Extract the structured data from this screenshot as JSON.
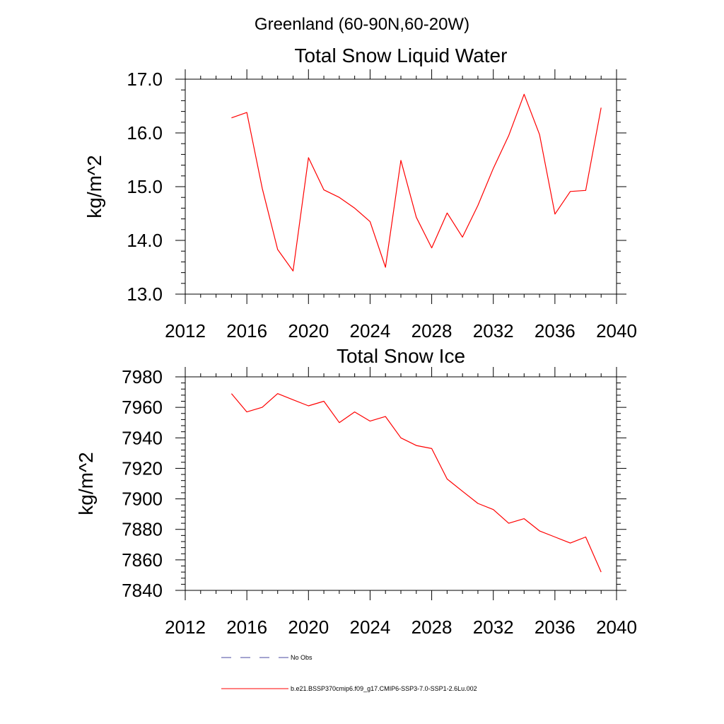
{
  "figure_title": "Greenland (60-90N,60-20W)",
  "colors": {
    "model": "#ff0000",
    "obs": "#4a4aa0",
    "axes": "#000000"
  },
  "legend": {
    "items": [
      {
        "label": "No Obs",
        "style": "dashed",
        "color": "#4a4aa0"
      },
      {
        "label": "b.e21.BSSP370cmip6.f09_g17.CMIP6-SSP3-7.0-SSP1-2.6Lu.002",
        "style": "solid",
        "color": "#ff0000"
      }
    ]
  },
  "chart_data": [
    {
      "type": "line",
      "title": "Total Snow Liquid Water",
      "xlabel": "",
      "ylabel": "kg/m^2",
      "xlim": [
        2012,
        2040
      ],
      "ylim": [
        13.0,
        17.0
      ],
      "xticks": [
        2012,
        2016,
        2020,
        2024,
        2028,
        2032,
        2036,
        2040
      ],
      "xtick_labels": [
        "2012",
        "2016",
        "2020",
        "2024",
        "2028",
        "2032",
        "2036",
        "2040"
      ],
      "xminor": 1,
      "yticks": [
        13.0,
        14.0,
        15.0,
        16.0,
        17.0
      ],
      "ytick_labels": [
        "13.0",
        "14.0",
        "15.0",
        "16.0",
        "17.0"
      ],
      "yminor": 0.2,
      "x": [
        2015,
        2016,
        2017,
        2018,
        2019,
        2020,
        2021,
        2022,
        2023,
        2024,
        2025,
        2026,
        2027,
        2028,
        2029,
        2030,
        2031,
        2032,
        2033,
        2034,
        2035,
        2036,
        2037,
        2038,
        2039
      ],
      "series": [
        {
          "name": "b.e21.BSSP370cmip6.f09_g17.CMIP6-SSP3-7.0-SSP1-2.6Lu.002",
          "color": "#ff0000",
          "values": [
            16.28,
            16.38,
            14.97,
            13.83,
            13.43,
            15.54,
            14.94,
            14.8,
            14.6,
            14.35,
            13.5,
            15.49,
            14.43,
            13.86,
            14.51,
            14.06,
            14.65,
            15.34,
            15.95,
            16.72,
            15.97,
            14.49,
            14.91,
            14.93,
            16.47
          ]
        }
      ]
    },
    {
      "type": "line",
      "title": "Total Snow Ice",
      "xlabel": "",
      "ylabel": "kg/m^2",
      "xlim": [
        2012,
        2040
      ],
      "ylim": [
        7840,
        7980
      ],
      "xticks": [
        2012,
        2016,
        2020,
        2024,
        2028,
        2032,
        2036,
        2040
      ],
      "xtick_labels": [
        "2012",
        "2016",
        "2020",
        "2024",
        "2028",
        "2032",
        "2036",
        "2040"
      ],
      "xminor": 1,
      "yticks": [
        7840,
        7860,
        7880,
        7900,
        7920,
        7940,
        7960,
        7980
      ],
      "ytick_labels": [
        "7840",
        "7860",
        "7880",
        "7900",
        "7920",
        "7940",
        "7960",
        "7980"
      ],
      "yminor": 4,
      "x": [
        2015,
        2016,
        2017,
        2018,
        2019,
        2020,
        2021,
        2022,
        2023,
        2024,
        2025,
        2026,
        2027,
        2028,
        2029,
        2030,
        2031,
        2032,
        2033,
        2034,
        2035,
        2036,
        2037,
        2038,
        2039
      ],
      "series": [
        {
          "name": "b.e21.BSSP370cmip6.f09_g17.CMIP6-SSP3-7.0-SSP1-2.6Lu.002",
          "color": "#ff0000",
          "values": [
            7969,
            7957,
            7960,
            7969,
            7965,
            7961,
            7964,
            7950,
            7957,
            7951,
            7954,
            7940,
            7935,
            7933,
            7913,
            7905,
            7897,
            7893,
            7884,
            7887,
            7879,
            7875,
            7871,
            7875,
            7852
          ]
        }
      ]
    }
  ]
}
